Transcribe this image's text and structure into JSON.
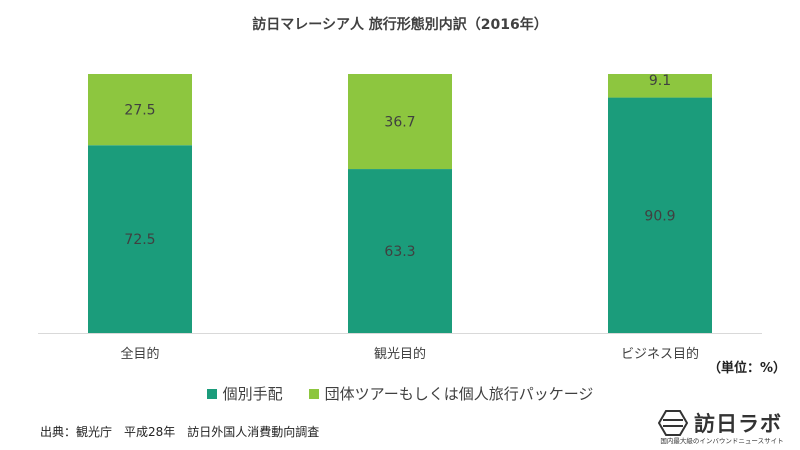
{
  "chart_data": {
    "type": "stacked-bar",
    "title": "訪日マレーシア人 旅行形態別内訳（2016年）",
    "categories": [
      "全目的",
      "観光目的",
      "ビジネス目的"
    ],
    "series": [
      {
        "name": "個別手配",
        "color": "#1b9c7b",
        "values": [
          72.5,
          63.3,
          90.9
        ]
      },
      {
        "name": "団体ツアーもしくは個人旅行パッケージ",
        "color": "#8dc63f",
        "values": [
          27.5,
          36.7,
          9.1
        ]
      }
    ],
    "ylim": [
      0,
      100
    ],
    "unit_label": "（単位：%）"
  },
  "source": "出典：観光庁　平成28年　訪日外国人消費動向調査",
  "logo": {
    "name": "訪日ラボ",
    "tagline": "国内最大級のインバウンドニュースサイト"
  }
}
